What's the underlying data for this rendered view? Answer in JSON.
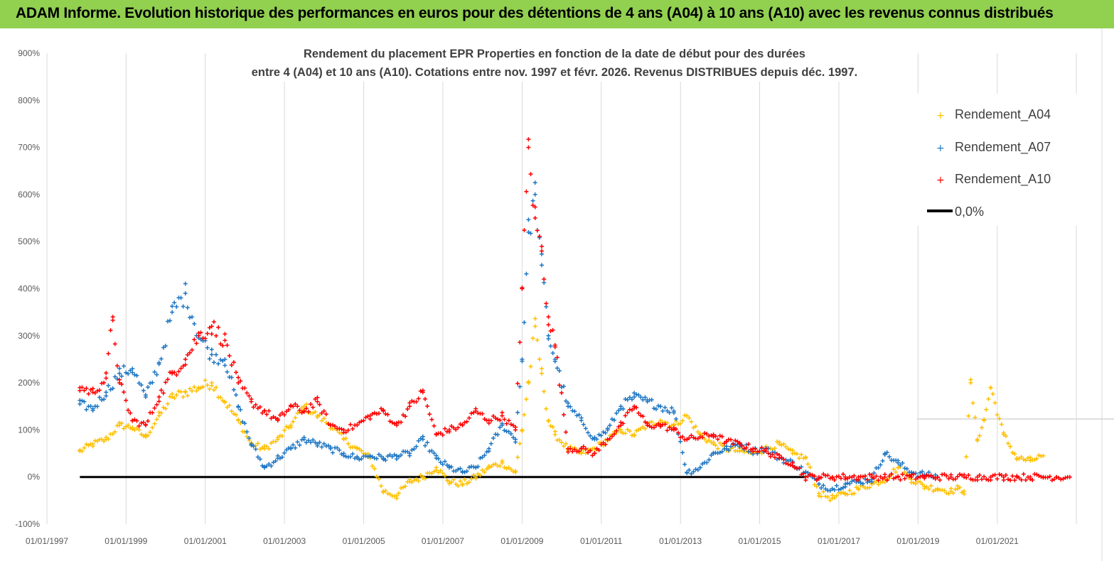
{
  "header": {
    "banner_text": "ADAM Informe. Evolution historique des performances en euros pour des détentions de 4 ans (A04) à 10 ans (A10) avec les revenus connus distribués"
  },
  "chart_data": {
    "type": "scatter",
    "title_line1": "Rendement du placement EPR Properties en fonction de la date de début pour des durées",
    "title_line2": "entre 4 (A04) et 10 ans (A10). Cotations entre nov. 1997 et févr. 2026. Revenus DISTRIBUES depuis déc. 1997.",
    "x_axis": {
      "type": "date",
      "range": [
        "1997-01-01",
        "2022-12-31"
      ],
      "tick_labels": [
        "01/01/1997",
        "01/01/1999",
        "01/01/2001",
        "01/01/2003",
        "01/01/2005",
        "01/01/2007",
        "01/01/2009",
        "01/01/2011",
        "01/01/2013",
        "01/01/2015",
        "01/01/2017",
        "01/01/2019",
        "01/01/2021"
      ]
    },
    "y_axis": {
      "unit": "%",
      "range": [
        -100,
        900
      ],
      "tick_values": [
        -100,
        0,
        100,
        200,
        300,
        400,
        500,
        600,
        700,
        800,
        900
      ],
      "tick_labels": [
        "-100%",
        "0%",
        "100%",
        "200%",
        "300%",
        "400%",
        "500%",
        "600%",
        "700%",
        "800%",
        "900%"
      ]
    },
    "grid": {
      "vertical": true,
      "horizontal": false
    },
    "legend_position": "top-right",
    "legend": [
      "Rendement_A04",
      "Rendement_A07",
      "Rendement_A10",
      "0,0%"
    ],
    "series": [
      {
        "name": "Rendement_A04",
        "color": "#ffc000",
        "marker": "plus",
        "x": [
          "1997-11",
          "1998-03",
          "1998-07",
          "1998-11",
          "1999-03",
          "1999-07",
          "1999-11",
          "2000-03",
          "2000-07",
          "2000-11",
          "2001-03",
          "2001-07",
          "2001-11",
          "2002-03",
          "2002-07",
          "2002-11",
          "2003-03",
          "2003-07",
          "2003-11",
          "2004-03",
          "2004-07",
          "2004-11",
          "2005-03",
          "2005-07",
          "2005-11",
          "2006-03",
          "2006-07",
          "2006-11",
          "2007-03",
          "2007-07",
          "2007-11",
          "2008-03",
          "2008-07",
          "2008-11",
          "2009-01",
          "2009-03",
          "2009-05",
          "2009-07",
          "2009-09",
          "2009-11",
          "2010-03",
          "2010-07",
          "2010-11",
          "2011-03",
          "2011-07",
          "2011-11",
          "2012-03",
          "2012-07",
          "2012-11",
          "2013-03",
          "2013-07",
          "2013-11",
          "2014-03",
          "2014-07",
          "2014-11",
          "2015-03",
          "2015-07",
          "2015-11",
          "2016-03",
          "2016-07",
          "2016-11",
          "2017-03",
          "2017-07",
          "2017-11",
          "2018-03",
          "2018-07",
          "2018-11",
          "2019-03",
          "2019-07",
          "2019-11",
          "2020-01",
          "2020-03",
          "2020-05",
          "2020-07",
          "2020-09",
          "2020-11",
          "2021-03",
          "2021-07",
          "2021-11",
          "2022-03"
        ],
        "y": [
          55,
          70,
          80,
          110,
          105,
          85,
          130,
          170,
          180,
          190,
          200,
          160,
          120,
          70,
          60,
          80,
          110,
          150,
          130,
          110,
          80,
          60,
          40,
          -30,
          -40,
          -10,
          0,
          20,
          -10,
          -15,
          0,
          20,
          30,
          10,
          100,
          200,
          320,
          220,
          120,
          90,
          60,
          50,
          60,
          80,
          100,
          90,
          110,
          120,
          110,
          130,
          90,
          70,
          60,
          55,
          50,
          60,
          70,
          50,
          40,
          -35,
          -45,
          -35,
          -25,
          -15,
          -5,
          20,
          -5,
          -20,
          -25,
          -30,
          -25,
          -30,
          200,
          80,
          120,
          190,
          90,
          40,
          35,
          45
        ]
      },
      {
        "name": "Rendement_A07",
        "color": "#1f77c4",
        "marker": "plus",
        "x": [
          "1997-11",
          "1998-03",
          "1998-07",
          "1998-11",
          "1999-03",
          "1999-07",
          "1999-11",
          "2000-03",
          "2000-07",
          "2000-11",
          "2001-03",
          "2001-07",
          "2001-11",
          "2002-03",
          "2002-07",
          "2002-11",
          "2003-03",
          "2003-07",
          "2003-11",
          "2004-03",
          "2004-07",
          "2004-11",
          "2005-03",
          "2005-07",
          "2005-11",
          "2006-03",
          "2006-07",
          "2006-11",
          "2007-03",
          "2007-07",
          "2007-11",
          "2008-03",
          "2008-07",
          "2008-11",
          "2009-01",
          "2009-03",
          "2009-05",
          "2009-07",
          "2009-09",
          "2009-11",
          "2010-03",
          "2010-07",
          "2010-11",
          "2011-03",
          "2011-07",
          "2011-11",
          "2012-03",
          "2012-07",
          "2012-11",
          "2013-03",
          "2013-07",
          "2013-11",
          "2014-03",
          "2014-07",
          "2014-11",
          "2015-03",
          "2015-07",
          "2015-11",
          "2016-03",
          "2016-07",
          "2016-11",
          "2017-03",
          "2017-07",
          "2017-11",
          "2018-03",
          "2018-07",
          "2018-11",
          "2019-03",
          "2019-07"
        ],
        "y": [
          155,
          145,
          180,
          220,
          230,
          170,
          240,
          350,
          390,
          300,
          260,
          250,
          150,
          70,
          20,
          40,
          60,
          80,
          70,
          60,
          50,
          40,
          45,
          40,
          45,
          50,
          80,
          40,
          20,
          10,
          20,
          60,
          110,
          80,
          250,
          520,
          600,
          450,
          300,
          250,
          150,
          120,
          80,
          100,
          150,
          170,
          160,
          150,
          140,
          10,
          20,
          50,
          60,
          70,
          55,
          60,
          40,
          30,
          10,
          -15,
          -25,
          -15,
          -10,
          -5,
          50,
          30,
          10,
          5,
          0
        ]
      },
      {
        "name": "Rendement_A10",
        "color": "#ff0000",
        "marker": "plus",
        "x": [
          "1997-11",
          "1998-03",
          "1998-07",
          "1998-09",
          "1998-11",
          "1999-03",
          "1999-07",
          "1999-11",
          "2000-03",
          "2000-07",
          "2000-11",
          "2001-03",
          "2001-07",
          "2001-11",
          "2002-03",
          "2002-07",
          "2002-11",
          "2003-03",
          "2003-07",
          "2003-11",
          "2004-03",
          "2004-07",
          "2004-11",
          "2005-03",
          "2005-07",
          "2005-11",
          "2006-03",
          "2006-07",
          "2006-11",
          "2007-03",
          "2007-07",
          "2007-11",
          "2008-03",
          "2008-07",
          "2008-11",
          "2009-01",
          "2009-03",
          "2009-05",
          "2009-07",
          "2009-09",
          "2009-11",
          "2010-03",
          "2010-07",
          "2010-11",
          "2011-03",
          "2011-07",
          "2011-11",
          "2012-03",
          "2012-07",
          "2012-11",
          "2013-03",
          "2013-07",
          "2013-11",
          "2014-03",
          "2014-07",
          "2014-11",
          "2015-03",
          "2015-07",
          "2015-11",
          "2016-03",
          "2016-07",
          "2016-11",
          "2017-03",
          "2017-07",
          "2017-11",
          "2018-03",
          "2018-07",
          "2018-11",
          "2019-03",
          "2019-07",
          "2019-11",
          "2020-03",
          "2020-07",
          "2020-11",
          "2021-03",
          "2021-07",
          "2021-11",
          "2022-03",
          "2022-07",
          "2022-11"
        ],
        "y": [
          190,
          180,
          210,
          340,
          200,
          120,
          110,
          170,
          220,
          250,
          300,
          320,
          290,
          200,
          160,
          140,
          120,
          150,
          140,
          160,
          110,
          100,
          110,
          130,
          140,
          110,
          150,
          180,
          90,
          100,
          110,
          140,
          120,
          130,
          100,
          400,
          700,
          550,
          480,
          340,
          280,
          60,
          60,
          50,
          80,
          110,
          150,
          110,
          110,
          100,
          80,
          85,
          90,
          75,
          70,
          60,
          55,
          40,
          30,
          0,
          0,
          0,
          0,
          0,
          0,
          0,
          0,
          0,
          0,
          0,
          0,
          0,
          0,
          0,
          0,
          0,
          0,
          0,
          0,
          0
        ]
      },
      {
        "name": "0,0%",
        "color": "#000000",
        "marker": "line",
        "x": [
          "1997-11",
          "2016-03"
        ],
        "y": [
          0,
          0
        ]
      }
    ]
  }
}
